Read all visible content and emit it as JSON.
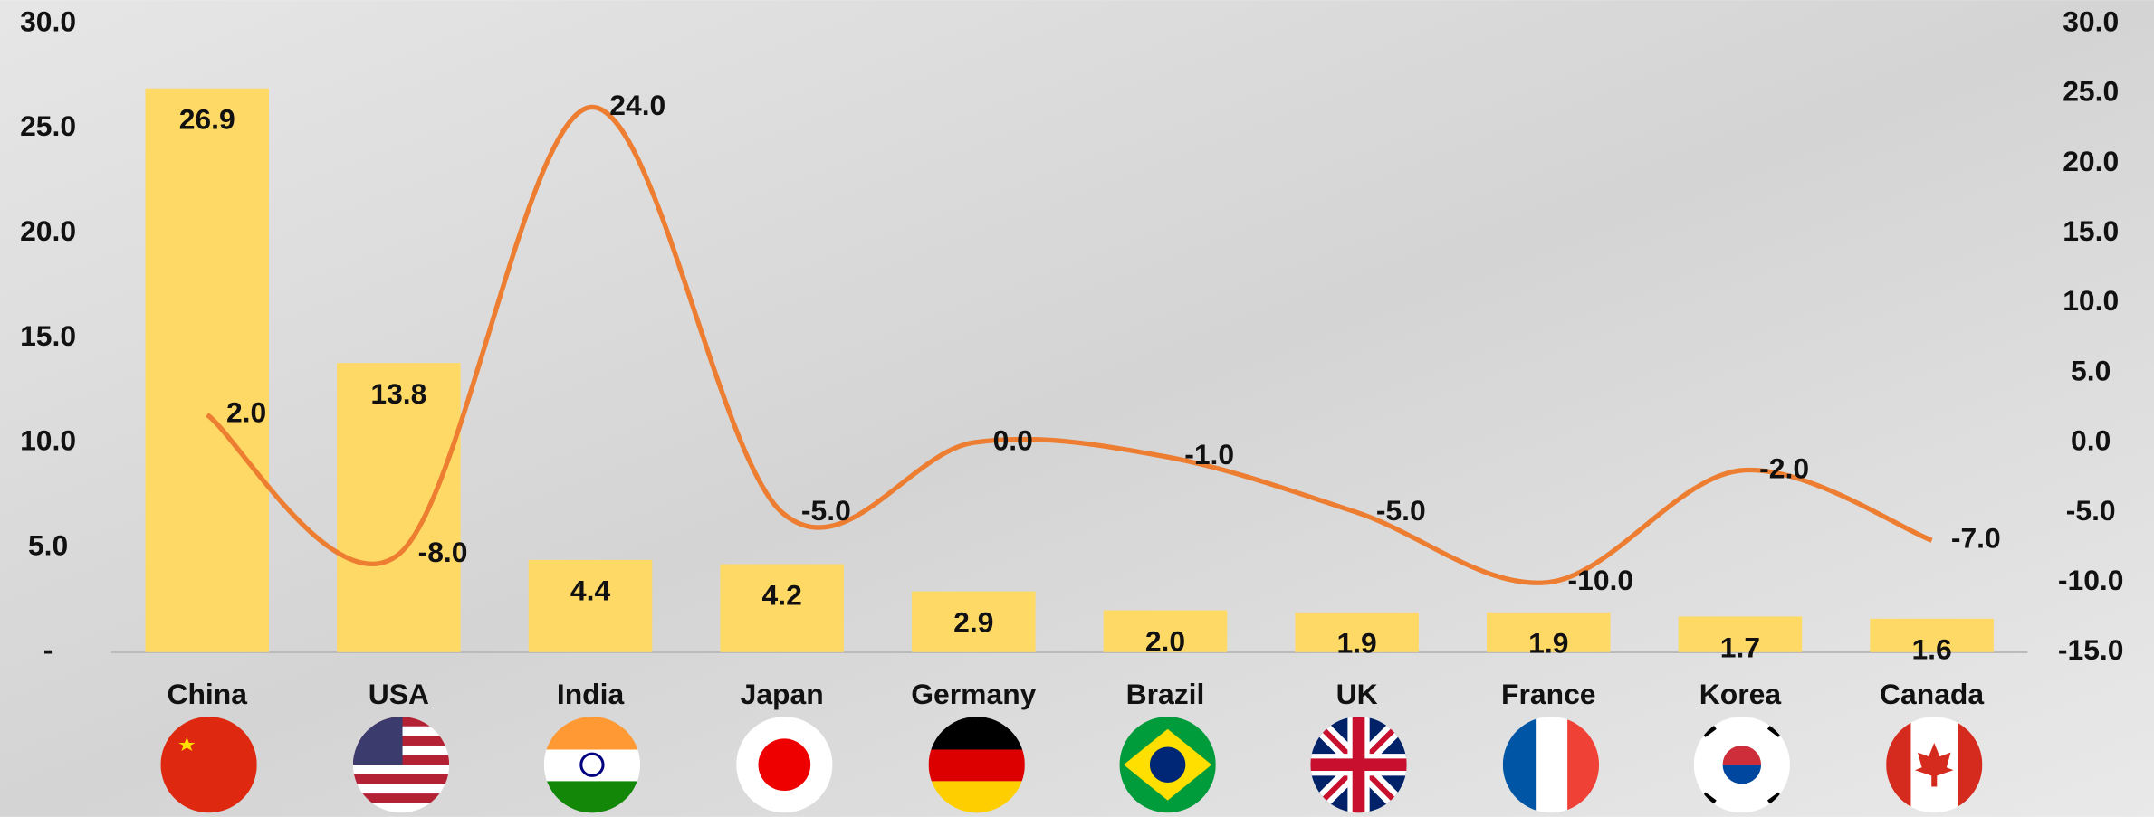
{
  "chart_data": {
    "type": "bar",
    "categories": [
      "China",
      "USA",
      "India",
      "Japan",
      "Germany",
      "Brazil",
      "UK",
      "France",
      "Korea",
      "Canada"
    ],
    "series": [
      {
        "type": "bar",
        "color": "#ffd966",
        "values": [
          26.9,
          13.8,
          4.4,
          4.2,
          2.9,
          2.0,
          1.9,
          1.9,
          1.7,
          1.6
        ],
        "value_labels": [
          "26.9",
          "13.8",
          "4.4",
          "4.2",
          "2.9",
          "2.0",
          "1.9",
          "1.9",
          "1.7",
          "1.6"
        ]
      },
      {
        "type": "line",
        "axis": "y2",
        "color": "#ed7d31",
        "values": [
          2,
          -8,
          24,
          -5,
          0,
          -1,
          -5,
          -10,
          -2,
          -7
        ],
        "value_labels": [
          "2.0",
          "-8.0",
          "24.0",
          "-5.0",
          "0.0",
          "-1.0",
          "-5.0",
          "-10.0",
          "-2.0",
          "-7.0"
        ]
      }
    ],
    "ylim": [
      0,
      30
    ],
    "yticks": [
      {
        "value": 0,
        "label": "-"
      },
      {
        "value": 5,
        "label": "5.0"
      },
      {
        "value": 10,
        "label": "10.0"
      },
      {
        "value": 15,
        "label": "15.0"
      },
      {
        "value": 20,
        "label": "20.0"
      },
      {
        "value": 25,
        "label": "25.0"
      },
      {
        "value": 30,
        "label": "30.0"
      }
    ],
    "y2lim": [
      -15,
      30
    ],
    "y2ticks": [
      {
        "value": -15,
        "label": "-15.0"
      },
      {
        "value": -10,
        "label": "-10.0"
      },
      {
        "value": -5,
        "label": "-5.0"
      },
      {
        "value": 0,
        "label": "0.0"
      },
      {
        "value": 5,
        "label": "5.0"
      },
      {
        "value": 10,
        "label": "10.0"
      },
      {
        "value": 15,
        "label": "15.0"
      },
      {
        "value": 20,
        "label": "20.0"
      },
      {
        "value": 25,
        "label": "25.0"
      },
      {
        "value": 30,
        "label": "30.0"
      }
    ]
  }
}
